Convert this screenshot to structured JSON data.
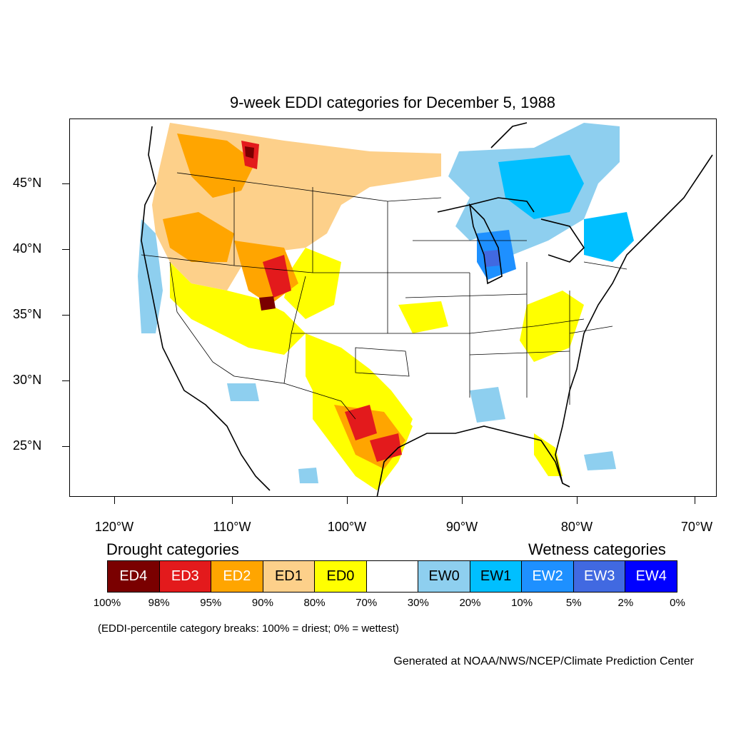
{
  "title": "9-week EDDI categories for December 5, 1988",
  "axes": {
    "lat_labels": [
      "45°N",
      "40°N",
      "35°N",
      "30°N",
      "25°N"
    ],
    "lon_labels": [
      "120°W",
      "110°W",
      "100°W",
      "90°W",
      "80°W",
      "70°W"
    ]
  },
  "legend": {
    "drought_heading": "Drought categories",
    "wetness_heading": "Wetness categories",
    "categories": [
      {
        "label": "ED4",
        "color": "#7a0000",
        "text_color": "#ffffff"
      },
      {
        "label": "ED3",
        "color": "#e31a1c",
        "text_color": "#ffffff"
      },
      {
        "label": "ED2",
        "color": "#ffa500",
        "text_color": "#ffffff"
      },
      {
        "label": "ED1",
        "color": "#fdd08a",
        "text_color": "#000000"
      },
      {
        "label": "ED0",
        "color": "#ffff00",
        "text_color": "#000000"
      },
      {
        "label": "",
        "color": "#ffffff",
        "text_color": "#000000"
      },
      {
        "label": "EW0",
        "color": "#8ecfef",
        "text_color": "#000000"
      },
      {
        "label": "EW1",
        "color": "#00bfff",
        "text_color": "#000000"
      },
      {
        "label": "EW2",
        "color": "#1e90ff",
        "text_color": "#ffffff"
      },
      {
        "label": "EW3",
        "color": "#4169e1",
        "text_color": "#ffffff"
      },
      {
        "label": "EW4",
        "color": "#0000ff",
        "text_color": "#ffffff"
      }
    ],
    "percent_breaks": [
      "100%",
      "98%",
      "95%",
      "90%",
      "80%",
      "70%",
      "30%",
      "20%",
      "10%",
      "5%",
      "2%",
      "0%"
    ]
  },
  "note": "(EDDI-percentile category breaks: 100% = driest; 0% = wettest)",
  "credit": "Generated at NOAA/NWS/NCEP/Climate Prediction Center",
  "colors": {
    "ED4": "#7a0000",
    "ED3": "#e31a1c",
    "ED2": "#ffa500",
    "ED1": "#fdd08a",
    "ED0": "#ffff00",
    "EW0": "#8ecfef",
    "EW1": "#00bfff",
    "EW2": "#1e90ff",
    "EW3": "#4169e1",
    "EW4": "#0000ff"
  }
}
